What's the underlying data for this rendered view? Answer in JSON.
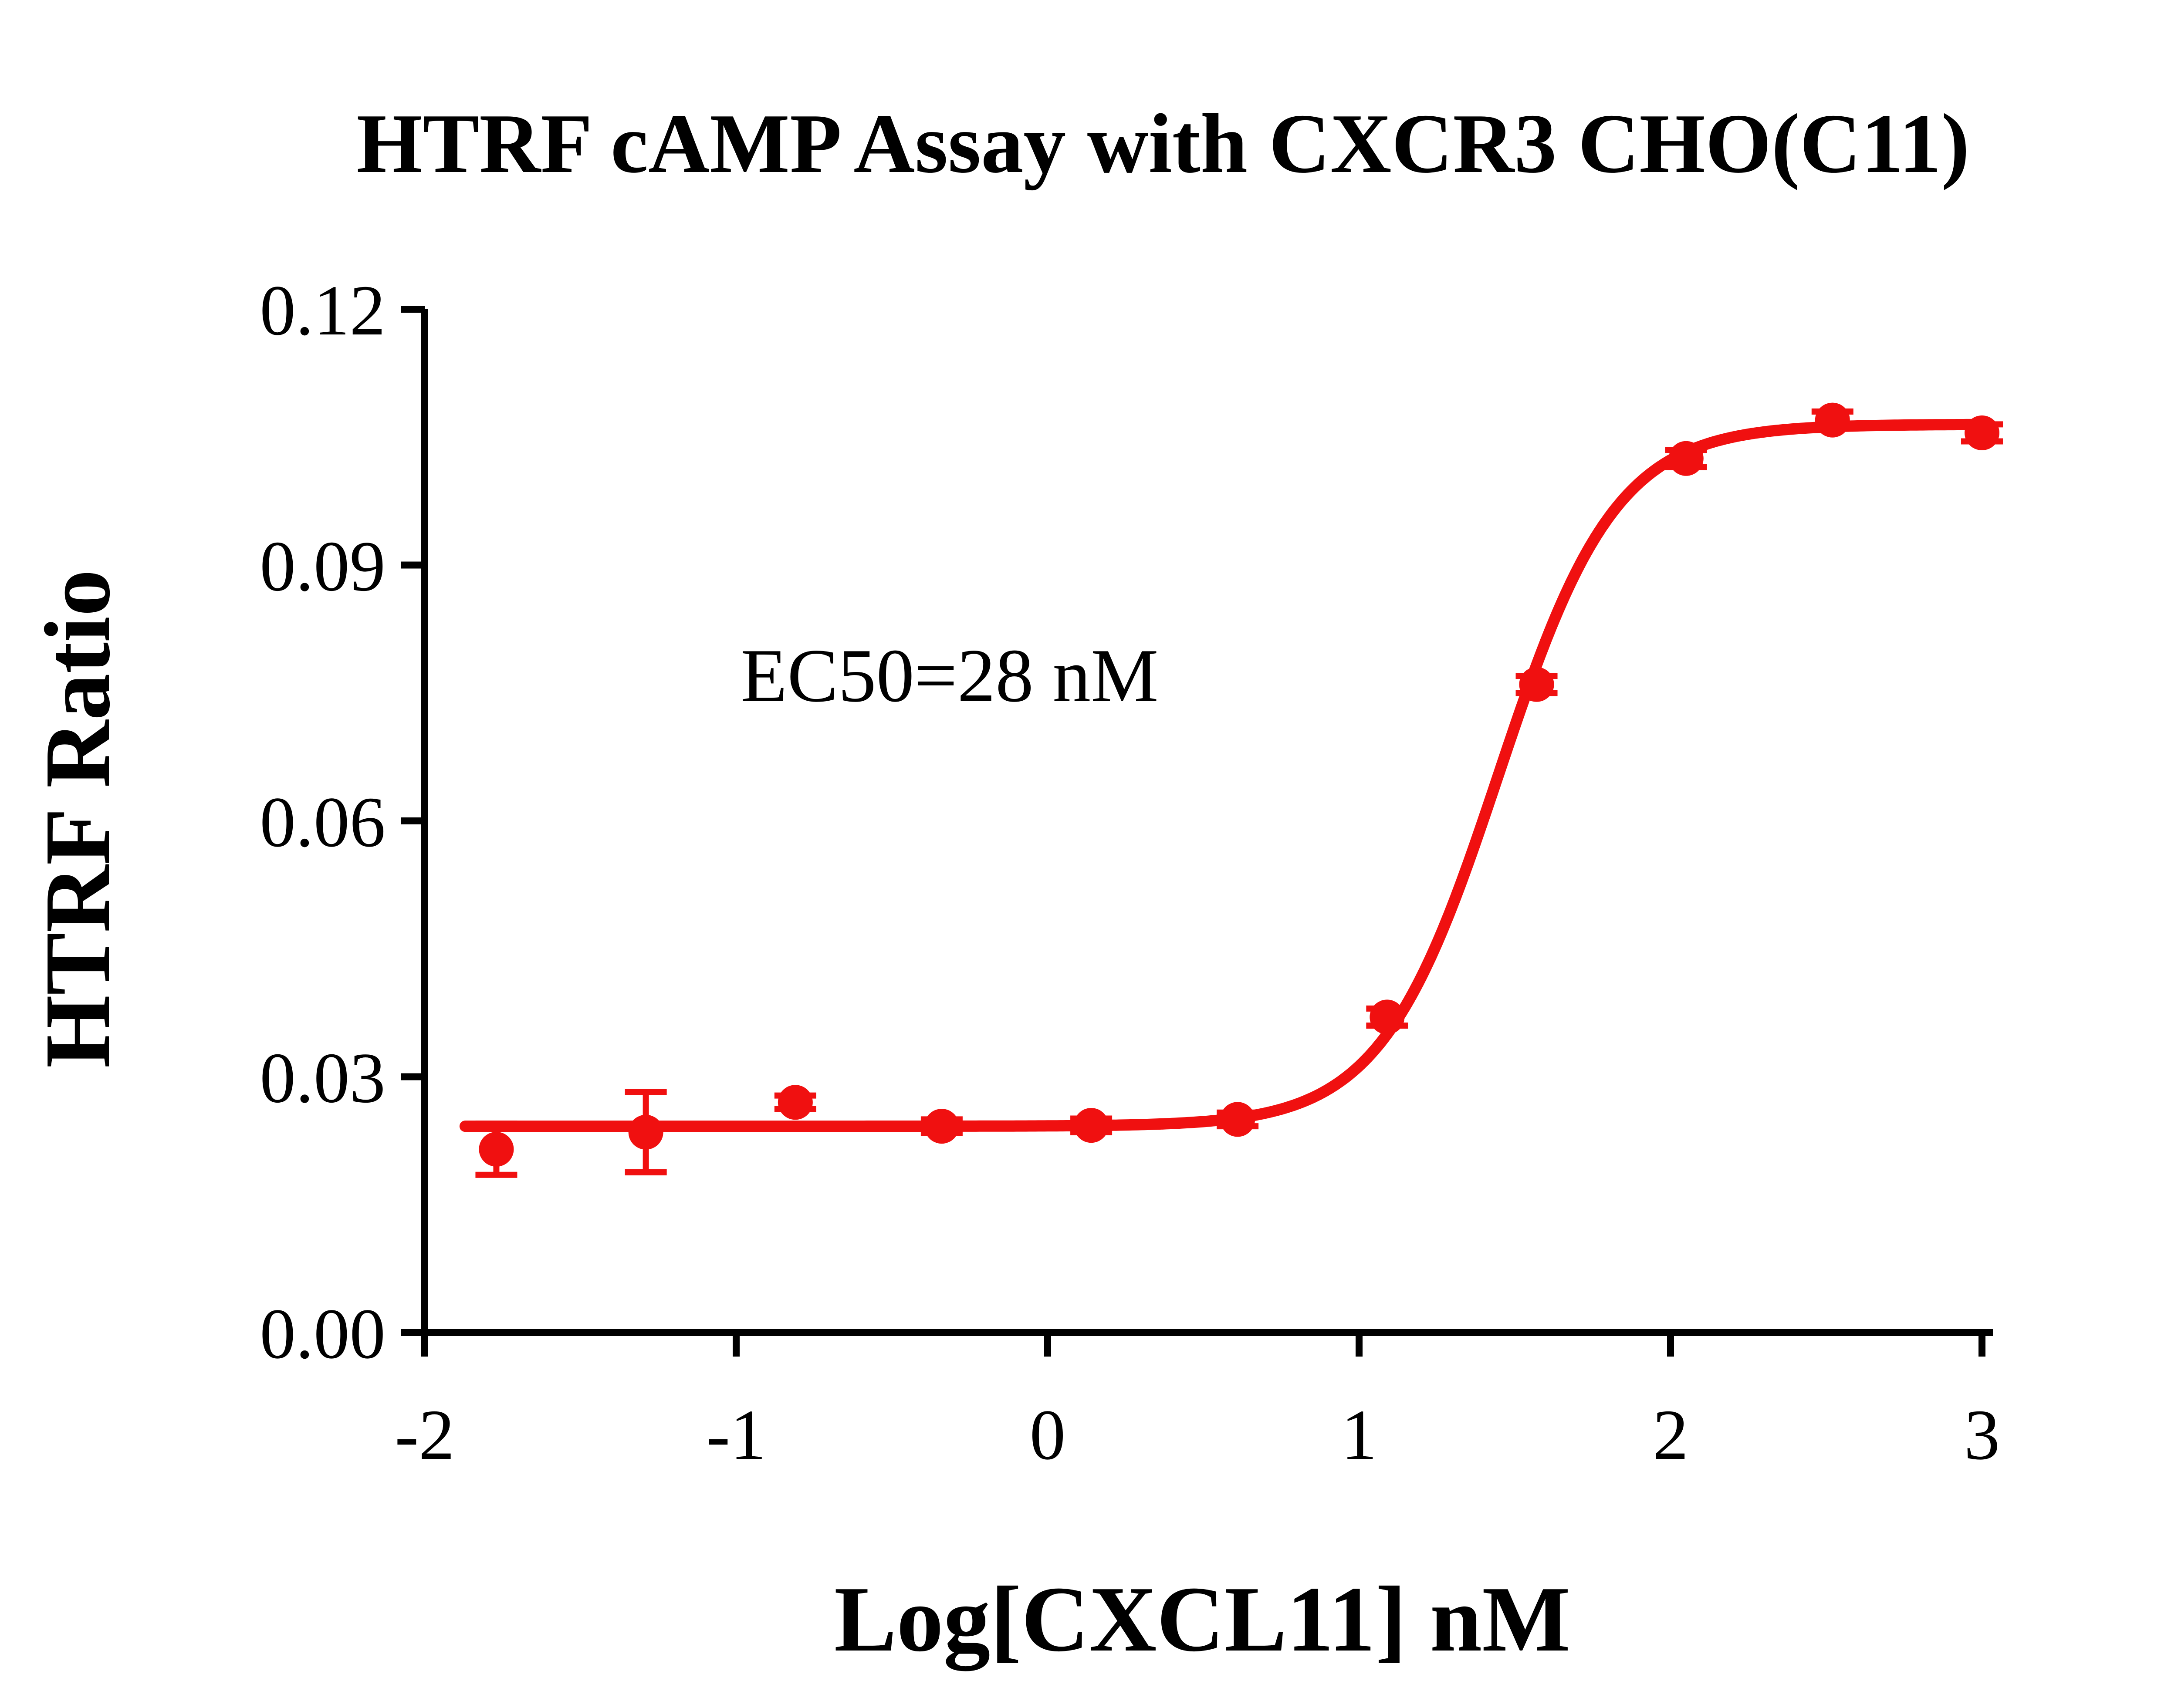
{
  "chart_data": {
    "type": "scatter",
    "title": "HTRF cAMP Assay with CXCR3 CHO(C11)",
    "xlabel": "Log[CXCL11] nM",
    "ylabel": "HTRF Ratio",
    "annotation": "EC50=28 nM",
    "ec50_nM": 28,
    "series_color": "#F01010",
    "axis_color": "#000000",
    "grid": false,
    "legend": "none",
    "xlim": [
      -2,
      3
    ],
    "ylim": [
      0,
      0.12
    ],
    "x_ticks": [
      {
        "v": -2,
        "label": "-2"
      },
      {
        "v": -1,
        "label": "-1"
      },
      {
        "v": 0,
        "label": "0"
      },
      {
        "v": 1,
        "label": "1"
      },
      {
        "v": 2,
        "label": "2"
      },
      {
        "v": 3,
        "label": "3"
      }
    ],
    "y_ticks": [
      {
        "v": 0.0,
        "label": "0.00"
      },
      {
        "v": 0.03,
        "label": "0.03"
      },
      {
        "v": 0.06,
        "label": "0.06"
      },
      {
        "v": 0.09,
        "label": "0.09"
      },
      {
        "v": 0.12,
        "label": "0.12"
      }
    ],
    "points": [
      {
        "x": -1.77,
        "y": 0.0215,
        "err": 0.003
      },
      {
        "x": -1.29,
        "y": 0.0235,
        "err": 0.0047
      },
      {
        "x": -0.81,
        "y": 0.027,
        "err": 0.0008
      },
      {
        "x": -0.34,
        "y": 0.0242,
        "err": 0.0008
      },
      {
        "x": 0.14,
        "y": 0.0243,
        "err": 0.0008
      },
      {
        "x": 0.61,
        "y": 0.025,
        "err": 0.0008
      },
      {
        "x": 1.09,
        "y": 0.037,
        "err": 0.001
      },
      {
        "x": 1.57,
        "y": 0.076,
        "err": 0.001
      },
      {
        "x": 2.05,
        "y": 0.1025,
        "err": 0.001
      },
      {
        "x": 2.52,
        "y": 0.107,
        "err": 0.001
      },
      {
        "x": 3.0,
        "y": 0.1055,
        "err": 0.001
      }
    ],
    "fit": {
      "model": "4PL",
      "bottom": 0.0242,
      "top": 0.1065,
      "logEC50": 1.447,
      "hill": 2.3,
      "x_start": -1.87,
      "x_end": 3.0
    }
  }
}
